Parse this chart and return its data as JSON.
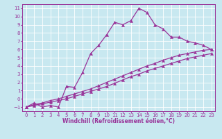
{
  "xlabel": "Windchill (Refroidissement éolien,°C)",
  "bg_color": "#c8e8f0",
  "grid_color": "#ffffff",
  "line_color": "#993399",
  "xlim": [
    -0.5,
    23.5
  ],
  "ylim": [
    -1.5,
    11.5
  ],
  "xticks": [
    0,
    1,
    2,
    3,
    4,
    5,
    6,
    7,
    8,
    9,
    10,
    11,
    12,
    13,
    14,
    15,
    16,
    17,
    18,
    19,
    20,
    21,
    22,
    23
  ],
  "yticks": [
    -1,
    0,
    1,
    2,
    3,
    4,
    5,
    6,
    7,
    8,
    9,
    10,
    11
  ],
  "curve1_x": [
    0,
    1,
    2,
    3,
    4,
    5,
    6,
    7,
    8,
    9,
    10,
    11,
    12,
    13,
    14,
    15,
    16,
    17,
    18,
    19,
    20,
    21,
    22,
    23
  ],
  "curve1_y": [
    -1,
    -0.5,
    -1,
    -0.8,
    -1.0,
    1.5,
    1.4,
    3.2,
    5.5,
    6.5,
    7.8,
    9.3,
    9.0,
    9.5,
    11.0,
    10.5,
    9.0,
    8.5,
    7.5,
    7.5,
    7.0,
    6.8,
    6.5,
    6.0
  ],
  "curve2_x": [
    0,
    1,
    2,
    3,
    4,
    5,
    6,
    7,
    8,
    9,
    10,
    11,
    12,
    13,
    14,
    15,
    16,
    17,
    18,
    19,
    20,
    21,
    22,
    23
  ],
  "curve2_y": [
    -1,
    -0.7,
    -0.5,
    -0.2,
    0.0,
    0.3,
    0.6,
    0.9,
    1.2,
    1.6,
    2.0,
    2.4,
    2.8,
    3.2,
    3.6,
    4.0,
    4.3,
    4.7,
    5.0,
    5.3,
    5.5,
    5.7,
    5.9,
    6.0
  ],
  "curve3_x": [
    0,
    1,
    2,
    3,
    4,
    5,
    6,
    7,
    8,
    9,
    10,
    11,
    12,
    13,
    14,
    15,
    16,
    17,
    18,
    19,
    20,
    21,
    22,
    23
  ],
  "curve3_y": [
    -1,
    -0.8,
    -0.6,
    -0.4,
    -0.2,
    0.0,
    0.3,
    0.6,
    0.9,
    1.2,
    1.5,
    1.9,
    2.3,
    2.7,
    3.0,
    3.4,
    3.7,
    4.0,
    4.3,
    4.6,
    4.9,
    5.1,
    5.3,
    5.5
  ],
  "marker": "^",
  "markersize": 3.0,
  "linewidth": 0.9,
  "xlabel_fontsize": 5.5,
  "tick_fontsize": 5.0
}
